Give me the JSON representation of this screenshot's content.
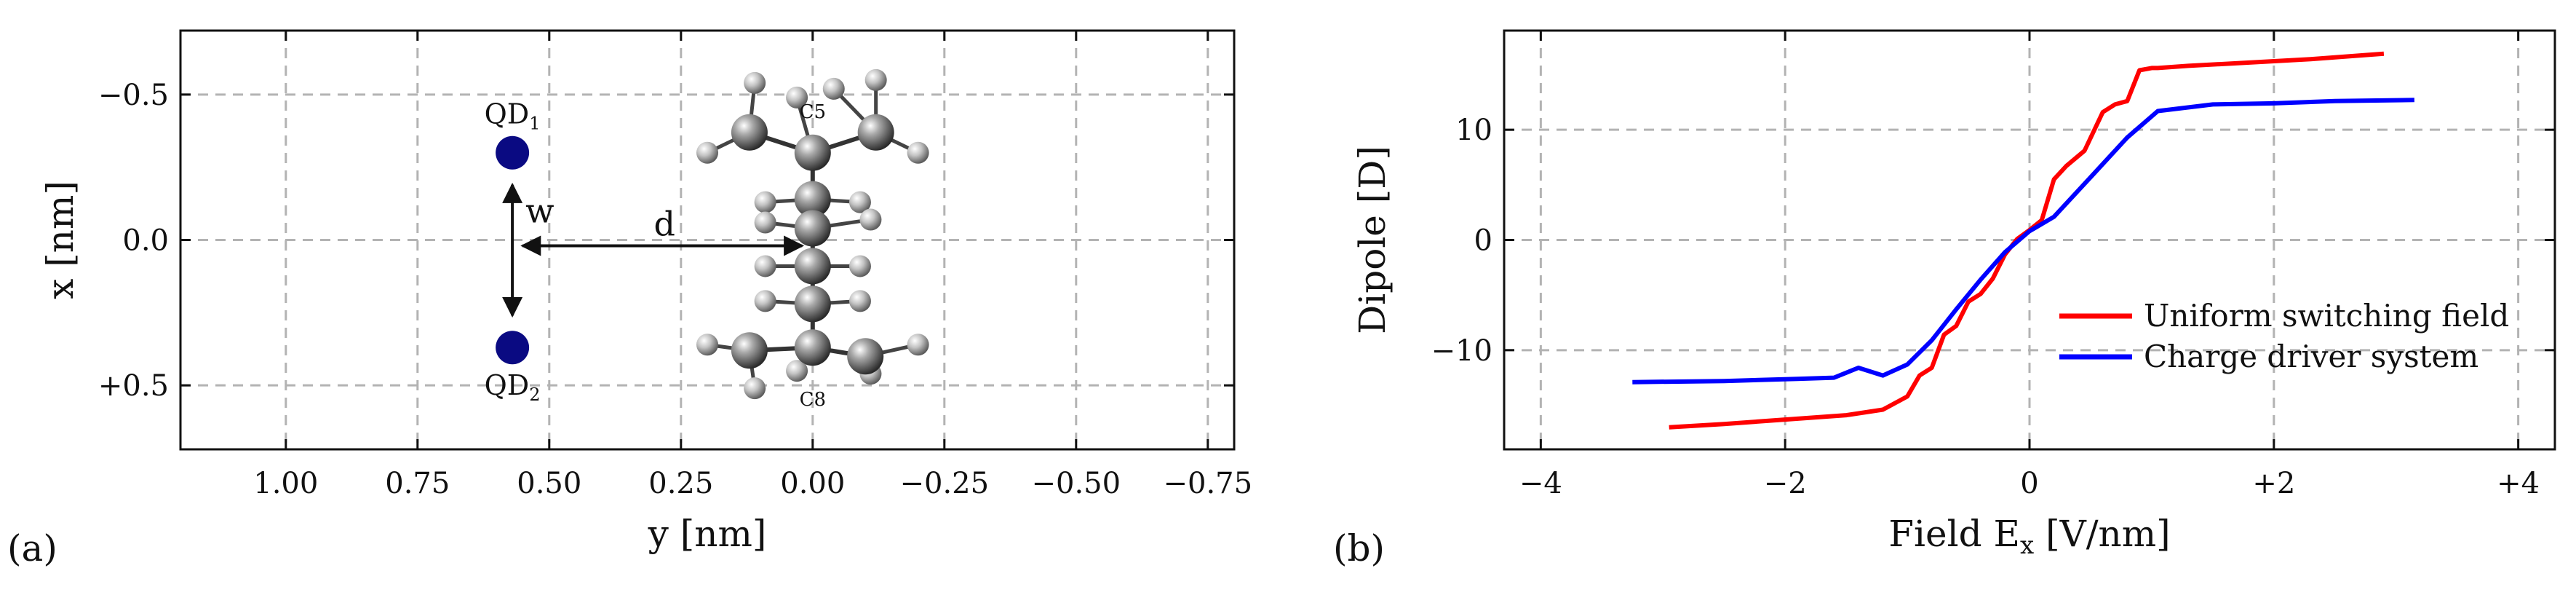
{
  "panels": {
    "a": {
      "label": "(a)",
      "xlabel": "y [nm]",
      "ylabel": "x [nm]",
      "annotations": {
        "qd1": "QD",
        "qd1_sub": "1",
        "qd2": "QD",
        "qd2_sub": "2",
        "w": "w",
        "d": "d",
        "c5": "C5",
        "c8": "C8"
      }
    },
    "b": {
      "label": "(b)",
      "xlabel_main": "Field E",
      "xlabel_sub": "x",
      "xlabel_unit": " [V/nm]",
      "ylabel": "Dipole [D]"
    }
  },
  "colors": {
    "red": "#ff0000",
    "blue": "#0000ff",
    "qd": "#0a0a82",
    "grid": "#b3b3b3"
  },
  "chart_data": [
    {
      "type": "scatter",
      "panel": "a",
      "xlabel": "y [nm]",
      "ylabel": "x [nm]",
      "xlim": [
        1.2,
        -0.8
      ],
      "ylim": [
        0.72,
        -0.72
      ],
      "xticks": [
        1.0,
        0.75,
        0.5,
        0.25,
        0.0,
        -0.25,
        -0.5,
        -0.75
      ],
      "xticklabels": [
        "1.00",
        "0.75",
        "0.50",
        "0.25",
        "0.00",
        "−0.25",
        "−0.50",
        "−0.75"
      ],
      "yticks": [
        -0.5,
        0.0,
        0.5
      ],
      "yticklabels": [
        "−0.5",
        "0.0",
        "+0.5"
      ],
      "grid": true,
      "points": [
        {
          "name": "QD1",
          "y": 0.57,
          "x": -0.3
        },
        {
          "name": "QD2",
          "y": 0.57,
          "x": 0.37
        }
      ],
      "molecule": {
        "heavy": [
          {
            "y": 0.0,
            "x": -0.3
          },
          {
            "y": 0.12,
            "x": -0.37
          },
          {
            "y": -0.12,
            "x": -0.37
          },
          {
            "y": 0.0,
            "x": -0.14
          },
          {
            "y": 0.0,
            "x": -0.04
          },
          {
            "y": 0.0,
            "x": 0.09
          },
          {
            "y": 0.0,
            "x": 0.22
          },
          {
            "y": 0.0,
            "x": 0.37
          },
          {
            "y": 0.12,
            "x": 0.38
          },
          {
            "y": -0.1,
            "x": 0.4
          }
        ],
        "hydrogen": [
          {
            "y": 0.11,
            "x": -0.54
          },
          {
            "y": 0.2,
            "x": -0.3
          },
          {
            "y": 0.03,
            "x": -0.49
          },
          {
            "y": -0.12,
            "x": -0.55
          },
          {
            "y": -0.2,
            "x": -0.3
          },
          {
            "y": -0.04,
            "x": -0.52
          },
          {
            "y": 0.09,
            "x": -0.13
          },
          {
            "y": -0.09,
            "x": -0.13
          },
          {
            "y": 0.09,
            "x": -0.06
          },
          {
            "y": -0.11,
            "x": -0.07
          },
          {
            "y": 0.09,
            "x": 0.09
          },
          {
            "y": -0.09,
            "x": 0.09
          },
          {
            "y": 0.09,
            "x": 0.21
          },
          {
            "y": -0.09,
            "x": 0.21
          },
          {
            "y": 0.2,
            "x": 0.36
          },
          {
            "y": 0.11,
            "x": 0.51
          },
          {
            "y": -0.2,
            "x": 0.36
          },
          {
            "y": -0.11,
            "x": 0.46
          },
          {
            "y": 0.03,
            "x": 0.45
          }
        ]
      }
    },
    {
      "type": "line",
      "panel": "b",
      "xlabel": "Field E_x [V/nm]",
      "ylabel": "Dipole [D]",
      "xlim": [
        -4.3,
        4.3
      ],
      "ylim": [
        -19,
        19
      ],
      "xticks": [
        -4,
        -2,
        0,
        2,
        4
      ],
      "xticklabels": [
        "−4",
        "−2",
        "0",
        "+2",
        "+4"
      ],
      "yticks": [
        -10,
        0,
        10
      ],
      "yticklabels": [
        "−10",
        "0",
        "10"
      ],
      "grid": true,
      "legend_position": "right",
      "series": [
        {
          "name": "Uniform switching field",
          "color": "#ff0000",
          "x": [
            -2.95,
            -2.5,
            -2.0,
            -1.5,
            -1.2,
            -1.0,
            -0.9,
            -0.8,
            -0.7,
            -0.6,
            -0.5,
            -0.4,
            -0.3,
            -0.2,
            -0.1,
            0.0,
            0.1,
            0.2,
            0.3,
            0.45,
            0.6,
            0.7,
            0.8,
            0.9,
            1.0,
            1.05,
            1.3,
            1.8,
            2.3,
            2.9
          ],
          "values": [
            -17,
            -16.7,
            -16.3,
            -15.9,
            -15.4,
            -14.2,
            -12.3,
            -11.6,
            -8.6,
            -7.8,
            -5.6,
            -4.9,
            -3.5,
            -1.3,
            0.1,
            0.9,
            1.8,
            5.5,
            6.7,
            8.1,
            11.6,
            12.3,
            12.6,
            15.4,
            15.6,
            15.6,
            15.8,
            16.1,
            16.4,
            16.9
          ]
        },
        {
          "name": "Charge driver system",
          "color": "#0000ff",
          "x": [
            -3.25,
            -2.5,
            -1.9,
            -1.6,
            -1.4,
            -1.2,
            -1.0,
            -0.8,
            -0.6,
            -0.4,
            -0.2,
            0.0,
            0.2,
            0.5,
            0.8,
            1.05,
            1.5,
            2.0,
            2.5,
            3.15
          ],
          "values": [
            -12.9,
            -12.8,
            -12.6,
            -12.5,
            -11.6,
            -12.3,
            -11.3,
            -9.1,
            -6.3,
            -3.6,
            -1.1,
            0.8,
            2.1,
            5.7,
            9.3,
            11.7,
            12.3,
            12.4,
            12.6,
            12.7
          ]
        }
      ]
    }
  ]
}
